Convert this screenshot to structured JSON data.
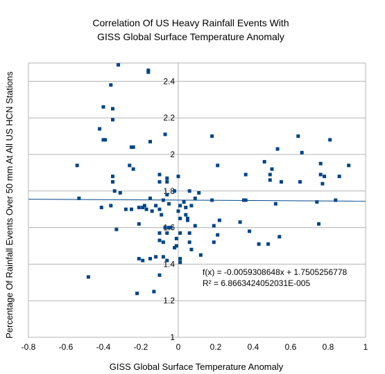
{
  "chart_data": {
    "type": "scatter",
    "title": "Correlation Of US Heavy Rainfall Events With",
    "subtitle": "GISS Global Surface Temperature Anomaly",
    "xlabel": "GISS Global Surface Temperature Anomaly",
    "ylabel": "Percentage Of Rainfall Events Over 50 mm  At All US HCN Stations",
    "xlim": [
      -0.8,
      1
    ],
    "ylim": [
      1,
      2.5
    ],
    "x_ticks": [
      -0.8,
      -0.6,
      -0.4,
      -0.2,
      0,
      0.2,
      0.4,
      0.6,
      0.8,
      1
    ],
    "x_tick_labels": [
      "-0.8",
      "-0.6",
      "-0.4",
      "-0.2",
      "0",
      "0.2",
      "0.4",
      "0.6",
      "0.8",
      "1"
    ],
    "y_ticks": [
      1,
      1.2,
      1.4,
      1.6,
      1.8,
      2,
      2.2,
      2.4
    ],
    "y_tick_labels": [
      "1",
      "1.2",
      "1.4",
      "1.6",
      "1.8",
      "2",
      "2.2",
      "2.4"
    ],
    "grid": "horizontal",
    "trendline": {
      "slope": -0.0059308648,
      "intercept": 1.7505256778,
      "equation": "f(x) = -0.0059308648x + 1.7505256778",
      "r_squared": "R² = 6.8663424052031E-005"
    },
    "points": [
      [
        -0.54,
        1.94
      ],
      [
        -0.53,
        1.76
      ],
      [
        -0.48,
        1.33
      ],
      [
        -0.42,
        2.14
      ],
      [
        -0.4,
        2.26
      ],
      [
        -0.4,
        2.08
      ],
      [
        -0.39,
        2.08
      ],
      [
        -0.41,
        1.71
      ],
      [
        -0.36,
        2.38
      ],
      [
        -0.35,
        2.25
      ],
      [
        -0.35,
        2.19
      ],
      [
        -0.35,
        1.88
      ],
      [
        -0.35,
        1.85
      ],
      [
        -0.36,
        1.72
      ],
      [
        -0.34,
        1.8
      ],
      [
        -0.33,
        1.59
      ],
      [
        -0.32,
        2.49
      ],
      [
        -0.31,
        1.79
      ],
      [
        -0.28,
        1.7
      ],
      [
        -0.26,
        1.94
      ],
      [
        -0.25,
        2.04
      ],
      [
        -0.24,
        2.04
      ],
      [
        -0.24,
        1.92
      ],
      [
        -0.25,
        1.7
      ],
      [
        -0.22,
        1.24
      ],
      [
        -0.21,
        1.71
      ],
      [
        -0.21,
        1.62
      ],
      [
        -0.21,
        1.43
      ],
      [
        -0.19,
        1.42
      ],
      [
        -0.19,
        1.71
      ],
      [
        -0.18,
        1.72
      ],
      [
        -0.17,
        1.7
      ],
      [
        -0.16,
        2.46
      ],
      [
        -0.16,
        2.45
      ],
      [
        -0.15,
        2.07
      ],
      [
        -0.15,
        1.76
      ],
      [
        -0.15,
        1.43
      ],
      [
        -0.14,
        1.69
      ],
      [
        -0.13,
        1.25
      ],
      [
        -0.12,
        1.72
      ],
      [
        -0.12,
        1.44
      ],
      [
        -0.1,
        1.89
      ],
      [
        -0.1,
        1.85
      ],
      [
        -0.1,
        1.7
      ],
      [
        -0.1,
        1.57
      ],
      [
        -0.1,
        1.53
      ],
      [
        -0.1,
        1.34
      ],
      [
        -0.09,
        1.67
      ],
      [
        -0.08,
        1.75
      ],
      [
        -0.08,
        1.52
      ],
      [
        -0.08,
        1.44
      ],
      [
        -0.07,
        2.11
      ],
      [
        -0.07,
        1.6
      ],
      [
        -0.06,
        1.87
      ],
      [
        -0.06,
        1.85
      ],
      [
        -0.06,
        1.78
      ],
      [
        -0.06,
        1.57
      ],
      [
        -0.06,
        1.42
      ],
      [
        -0.05,
        1.73
      ],
      [
        -0.05,
        1.6
      ],
      [
        -0.04,
        1.6
      ],
      [
        -0.02,
        1.8
      ],
      [
        -0.02,
        1.49
      ],
      [
        -0.01,
        1.5
      ],
      [
        -0.01,
        1.54
      ],
      [
        0.0,
        1.88
      ],
      [
        0.0,
        1.69
      ],
      [
        0.01,
        1.72
      ],
      [
        0.01,
        1.65
      ],
      [
        0.01,
        1.57
      ],
      [
        0.01,
        1.43
      ],
      [
        0.01,
        1.41
      ],
      [
        0.03,
        1.74
      ],
      [
        0.04,
        1.71
      ],
      [
        0.04,
        1.67
      ],
      [
        0.05,
        1.65
      ],
      [
        0.05,
        1.64
      ],
      [
        0.06,
        1.8
      ],
      [
        0.06,
        1.57
      ],
      [
        0.06,
        1.52
      ],
      [
        0.07,
        1.72
      ],
      [
        0.07,
        1.48
      ],
      [
        0.09,
        1.76
      ],
      [
        0.09,
        1.61
      ],
      [
        0.11,
        1.79
      ],
      [
        0.12,
        1.45
      ],
      [
        0.18,
        2.1
      ],
      [
        0.18,
        1.75
      ],
      [
        0.19,
        1.61
      ],
      [
        0.19,
        1.52
      ],
      [
        0.21,
        1.94
      ],
      [
        0.21,
        1.56
      ],
      [
        0.22,
        1.64
      ],
      [
        0.33,
        1.63
      ],
      [
        0.35,
        1.75
      ],
      [
        0.36,
        1.89
      ],
      [
        0.36,
        1.75
      ],
      [
        0.38,
        1.58
      ],
      [
        0.43,
        1.51
      ],
      [
        0.46,
        1.96
      ],
      [
        0.48,
        1.51
      ],
      [
        0.49,
        1.89
      ],
      [
        0.49,
        1.86
      ],
      [
        0.5,
        1.92
      ],
      [
        0.52,
        1.73
      ],
      [
        0.53,
        2.03
      ],
      [
        0.54,
        1.55
      ],
      [
        0.55,
        1.85
      ],
      [
        0.64,
        2.1
      ],
      [
        0.65,
        1.85
      ],
      [
        0.66,
        2.01
      ],
      [
        0.74,
        1.74
      ],
      [
        0.75,
        1.62
      ],
      [
        0.76,
        1.95
      ],
      [
        0.76,
        1.89
      ],
      [
        0.77,
        1.84
      ],
      [
        0.78,
        1.88
      ],
      [
        0.81,
        2.08
      ],
      [
        0.84,
        1.75
      ],
      [
        0.86,
        1.88
      ],
      [
        0.91,
        1.94
      ]
    ]
  }
}
